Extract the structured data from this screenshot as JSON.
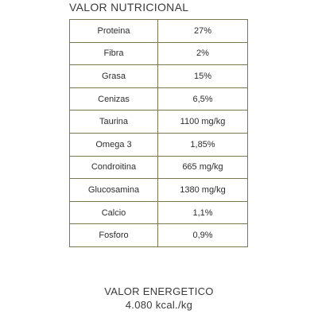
{
  "title": "VALOR NUTRICIONAL",
  "nutrients": [
    {
      "label": "Proteina",
      "value": "27%"
    },
    {
      "label": "Fibra",
      "value": "2%"
    },
    {
      "label": "Grasa",
      "value": "15%"
    },
    {
      "label": "Cenizas",
      "value": "6,5%"
    },
    {
      "label": "Taurina",
      "value": "1100 mg/kg"
    },
    {
      "label": "Omega 3",
      "value": "1,85%"
    },
    {
      "label": "Condroitina",
      "value": "665 mg/kg"
    },
    {
      "label": "Glucosamina",
      "value": "1380 mg/kg"
    },
    {
      "label": "Calcio",
      "value": "1,1%"
    },
    {
      "label": "Fosforo",
      "value": "0,9%"
    }
  ],
  "energy": {
    "label": "VALOR ENERGETICO",
    "value": "4.080 kcal./kg"
  }
}
